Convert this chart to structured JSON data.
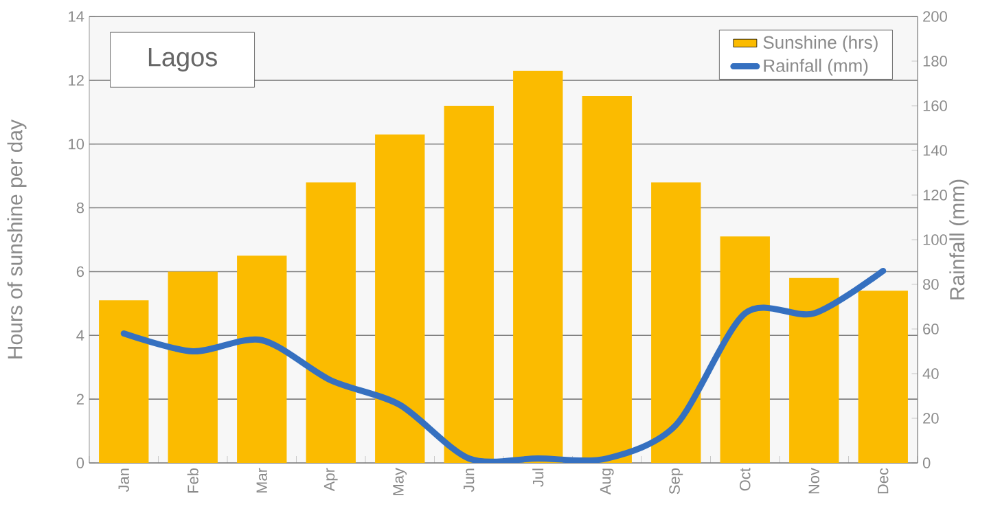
{
  "chart_data": {
    "type": "bar",
    "title": "Lagos",
    "categories": [
      "Jan",
      "Feb",
      "Mar",
      "Apr",
      "May",
      "Jun",
      "Jul",
      "Aug",
      "Sep",
      "Oct",
      "Nov",
      "Dec"
    ],
    "series": [
      {
        "name": "Sunshine (hrs)",
        "color": "#fbbb00",
        "values": [
          5.1,
          6.0,
          6.5,
          8.8,
          10.3,
          11.2,
          12.3,
          11.5,
          8.8,
          7.1,
          5.8,
          5.4
        ]
      },
      {
        "name": "Rainfall (mm)",
        "type": "line",
        "axis": "y2",
        "color": "#3570c0",
        "values": [
          58,
          50,
          55,
          37,
          26,
          2,
          2,
          2,
          17,
          67,
          67,
          86
        ]
      }
    ],
    "ylabel": "Hours of sunshine per day",
    "y2label": "Rainfall (mm)",
    "ylim": [
      0,
      14
    ],
    "yticks": [
      0,
      2,
      4,
      6,
      8,
      10,
      12,
      14
    ],
    "y2lim": [
      0,
      200
    ],
    "y2ticks": [
      0,
      20,
      40,
      60,
      80,
      100,
      120,
      140,
      160,
      180,
      200
    ],
    "grid": "y",
    "legend": "top right",
    "line_style": "solid",
    "marker": "none"
  }
}
